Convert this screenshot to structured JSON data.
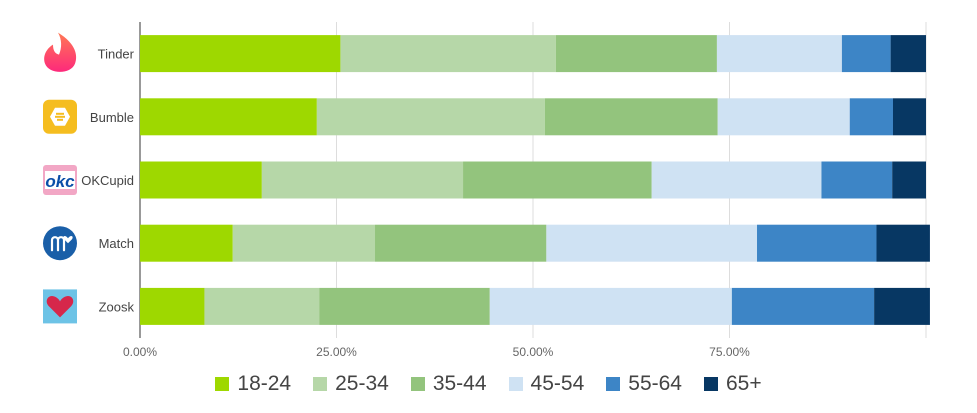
{
  "chart_data": {
    "type": "bar",
    "orientation": "horizontal",
    "stacked": true,
    "title": "",
    "xlabel": "",
    "ylabel": "",
    "xlim": [
      0,
      1
    ],
    "x_ticks": [
      0,
      0.25,
      0.5,
      0.75
    ],
    "x_tick_labels": [
      "0.00%",
      "25.00%",
      "50.00%",
      "75.00%"
    ],
    "grid": true,
    "legend_position": "bottom",
    "categories": [
      "Tinder",
      "Bumble",
      "OKCupid",
      "Match",
      "Zoosk"
    ],
    "category_icons": [
      "tinder-flame-icon",
      "bumble-hive-icon",
      "okcupid-logo-icon",
      "match-m-icon",
      "zoosk-heart-icon"
    ],
    "series": [
      {
        "name": "18-24",
        "color": "#9ed800",
        "values": [
          0.255,
          0.225,
          0.155,
          0.118,
          0.082
        ]
      },
      {
        "name": "25-34",
        "color": "#b6d7a8",
        "values": [
          0.274,
          0.29,
          0.256,
          0.181,
          0.146
        ]
      },
      {
        "name": "35-44",
        "color": "#93c47d",
        "values": [
          0.205,
          0.22,
          0.24,
          0.218,
          0.217
        ]
      },
      {
        "name": "45-54",
        "color": "#cfe2f3",
        "values": [
          0.159,
          0.168,
          0.216,
          0.268,
          0.308
        ]
      },
      {
        "name": "55-64",
        "color": "#3d85c6",
        "values": [
          0.062,
          0.055,
          0.09,
          0.152,
          0.181
        ]
      },
      {
        "name": "65+",
        "color": "#073763",
        "values": [
          0.045,
          0.042,
          0.043,
          0.068,
          0.071
        ]
      }
    ]
  }
}
